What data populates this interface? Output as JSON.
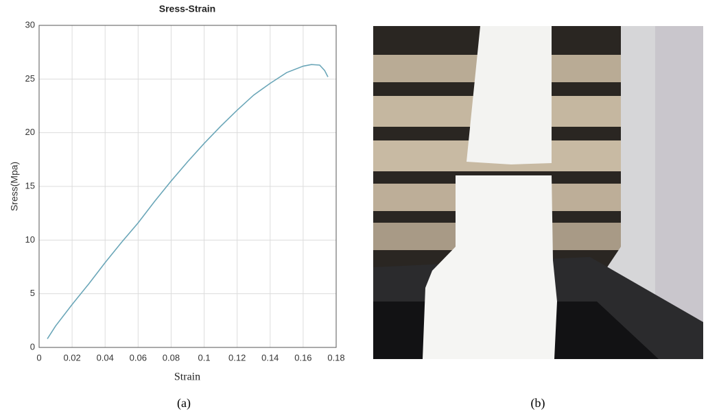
{
  "chart_data": {
    "type": "line",
    "title": "Sress-Strain",
    "xlabel": "Strain",
    "ylabel": "Sress(Mpa)",
    "x": [
      0.005,
      0.01,
      0.02,
      0.03,
      0.04,
      0.05,
      0.06,
      0.07,
      0.08,
      0.09,
      0.1,
      0.11,
      0.12,
      0.13,
      0.14,
      0.15,
      0.16,
      0.165,
      0.17,
      0.173,
      0.175
    ],
    "y": [
      0.8,
      2,
      4,
      5.9,
      7.9,
      9.8,
      11.6,
      13.6,
      15.5,
      17.3,
      19,
      20.6,
      22.1,
      23.5,
      24.6,
      25.6,
      26.2,
      26.35,
      26.3,
      25.8,
      25.2
    ],
    "color": "#6aa6b8",
    "xlim": [
      0,
      0.18
    ],
    "xticks": [
      0,
      0.02,
      0.04,
      0.06,
      0.08,
      0.1,
      0.12,
      0.14,
      0.16,
      0.18
    ],
    "ylim": [
      0,
      30
    ],
    "yticks": [
      0,
      5,
      10,
      15,
      20,
      25,
      30
    ],
    "grid": true
  },
  "captions": [
    "(a)",
    "(b)"
  ]
}
